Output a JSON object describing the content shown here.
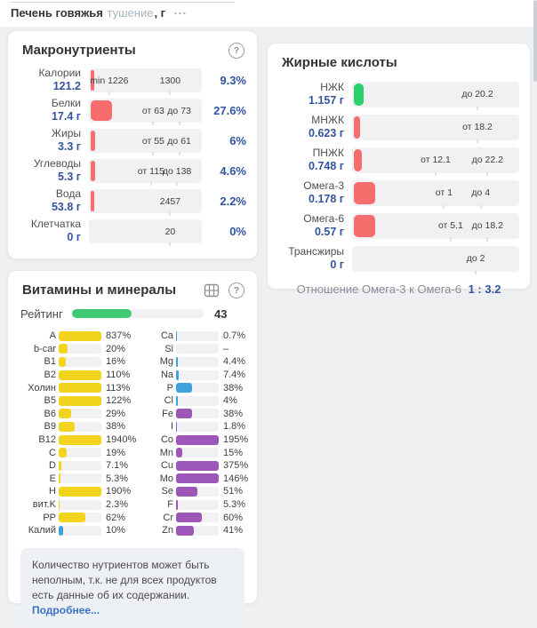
{
  "header": {
    "product_name": "Печень говяжья",
    "cooking_method": "тушение",
    "unit_suffix": ", г",
    "menu_icon": "···"
  },
  "colors": {
    "red": "#f76d6e",
    "green": "#2bd06c",
    "rating_green": "#3ecb73",
    "yellow": "#f2d41f",
    "blue": "#3ea2dc",
    "purple": "#9c57b8"
  },
  "macronutrients": {
    "title": "Макронутриенты",
    "help_icon": "?",
    "rows": [
      {
        "name": "Калории",
        "value": "121.2",
        "percent": "9.3%",
        "fill": 3,
        "color": "red",
        "marks": [
          {
            "t": "min 1226",
            "p": 18
          },
          {
            "t": "1300",
            "p": 72
          }
        ]
      },
      {
        "name": "Белки",
        "value": "17.4 г",
        "percent": "27.6%",
        "fill": 19,
        "color": "red",
        "marks": [
          {
            "t": "от 63",
            "p": 57
          },
          {
            "t": "до 73",
            "p": 80
          }
        ]
      },
      {
        "name": "Жиры",
        "value": "3.3 г",
        "percent": "6%",
        "fill": 4,
        "color": "red",
        "marks": [
          {
            "t": "от 55",
            "p": 57
          },
          {
            "t": "до 61",
            "p": 80
          }
        ]
      },
      {
        "name": "Углеводы",
        "value": "5.3 г",
        "percent": "4.6%",
        "fill": 4,
        "color": "red",
        "marks": [
          {
            "t": "от 115",
            "p": 55
          },
          {
            "t": "до 138",
            "p": 78
          }
        ]
      },
      {
        "name": "Вода",
        "value": "53.8 г",
        "percent": "2.2%",
        "fill": 3,
        "color": "red",
        "marks": [
          {
            "t": "2457",
            "p": 72
          }
        ]
      },
      {
        "name": "Клетчатка",
        "value": "0 г",
        "percent": "0%",
        "fill": 0,
        "color": "red",
        "marks": [
          {
            "t": "20",
            "p": 72
          }
        ]
      }
    ]
  },
  "fatty_acids": {
    "title": "Жирные кислоты",
    "rows": [
      {
        "name": "НЖК",
        "value": "1.157 г",
        "fill": 6,
        "color": "green",
        "marks": [
          {
            "t": "до 20.2",
            "p": 75
          }
        ]
      },
      {
        "name": "МНЖК",
        "value": "0.623 г",
        "fill": 3.5,
        "color": "red",
        "marks": [
          {
            "t": "от 18.2",
            "p": 75
          }
        ]
      },
      {
        "name": "ПНЖК",
        "value": "0.748 г",
        "fill": 5,
        "color": "red",
        "marks": [
          {
            "t": "от 12.1",
            "p": 50
          },
          {
            "t": "до 22.2",
            "p": 81
          }
        ]
      },
      {
        "name": "Омега-3",
        "value": "0.178 г",
        "fill": 13,
        "color": "red",
        "marks": [
          {
            "t": "от 1",
            "p": 55
          },
          {
            "t": "до 4",
            "p": 77
          }
        ]
      },
      {
        "name": "Омега-6",
        "value": "0.57 г",
        "fill": 13,
        "color": "red",
        "marks": [
          {
            "t": "от 5.1",
            "p": 59
          },
          {
            "t": "до 18.2",
            "p": 81
          }
        ]
      },
      {
        "name": "Трансжиры",
        "value": "0 г",
        "fill": 0,
        "color": "red",
        "marks": [
          {
            "t": "до 2",
            "p": 74
          }
        ]
      }
    ],
    "ratio_label": "Отношение Омега-3 к Омега-6",
    "ratio_value": "1 : 3.2"
  },
  "vitamins_minerals": {
    "title": "Витамины и минералы",
    "help_icon": "?",
    "rating_label": "Рейтинг",
    "rating_value": "43",
    "rating_fill": 45,
    "rating_color": "rating_green",
    "left_column": [
      {
        "label": "А",
        "percent": "837%",
        "fill": 100,
        "color": "yellow"
      },
      {
        "label": "b-car",
        "percent": "20%",
        "fill": 20,
        "color": "yellow"
      },
      {
        "label": "B1",
        "percent": "16%",
        "fill": 16,
        "color": "yellow"
      },
      {
        "label": "B2",
        "percent": "110%",
        "fill": 100,
        "color": "yellow"
      },
      {
        "label": "Холин",
        "percent": "113%",
        "fill": 100,
        "color": "yellow"
      },
      {
        "label": "B5",
        "percent": "122%",
        "fill": 100,
        "color": "yellow"
      },
      {
        "label": "B6",
        "percent": "29%",
        "fill": 29,
        "color": "yellow"
      },
      {
        "label": "B9",
        "percent": "38%",
        "fill": 38,
        "color": "yellow"
      },
      {
        "label": "B12",
        "percent": "1940%",
        "fill": 100,
        "color": "yellow"
      },
      {
        "label": "C",
        "percent": "19%",
        "fill": 19,
        "color": "yellow"
      },
      {
        "label": "D",
        "percent": "7.1%",
        "fill": 7,
        "color": "yellow"
      },
      {
        "label": "E",
        "percent": "5.3%",
        "fill": 5,
        "color": "yellow"
      },
      {
        "label": "H",
        "percent": "190%",
        "fill": 100,
        "color": "yellow"
      },
      {
        "label": "вит.K",
        "percent": "2.3%",
        "fill": 2,
        "color": "yellow"
      },
      {
        "label": "PP",
        "percent": "62%",
        "fill": 62,
        "color": "yellow"
      },
      {
        "label": "Калий",
        "percent": "10%",
        "fill": 10,
        "color": "blue"
      }
    ],
    "right_column": [
      {
        "label": "Ca",
        "percent": "0.7%",
        "fill": 1,
        "color": "blue"
      },
      {
        "label": "Si",
        "percent": "–",
        "fill": 0,
        "color": "blue"
      },
      {
        "label": "Mg",
        "percent": "4.4%",
        "fill": 4,
        "color": "blue"
      },
      {
        "label": "Na",
        "percent": "7.4%",
        "fill": 7,
        "color": "blue"
      },
      {
        "label": "P",
        "percent": "38%",
        "fill": 38,
        "color": "blue"
      },
      {
        "label": "Cl",
        "percent": "4%",
        "fill": 4,
        "color": "blue"
      },
      {
        "label": "Fe",
        "percent": "38%",
        "fill": 38,
        "color": "purple"
      },
      {
        "label": "I",
        "percent": "1.8%",
        "fill": 2,
        "color": "purple"
      },
      {
        "label": "Co",
        "percent": "195%",
        "fill": 100,
        "color": "purple"
      },
      {
        "label": "Mn",
        "percent": "15%",
        "fill": 15,
        "color": "purple"
      },
      {
        "label": "Cu",
        "percent": "375%",
        "fill": 100,
        "color": "purple"
      },
      {
        "label": "Mo",
        "percent": "146%",
        "fill": 100,
        "color": "purple"
      },
      {
        "label": "Se",
        "percent": "51%",
        "fill": 51,
        "color": "purple"
      },
      {
        "label": "F",
        "percent": "5.3%",
        "fill": 5,
        "color": "purple"
      },
      {
        "label": "Cr",
        "percent": "60%",
        "fill": 60,
        "color": "purple"
      },
      {
        "label": "Zn",
        "percent": "41%",
        "fill": 41,
        "color": "purple"
      }
    ],
    "note": {
      "text": "Количество нутриентов может быть неполным, т.к. не для всех продуктов есть данные об их содержании. ",
      "link": "Подробнее..."
    }
  }
}
